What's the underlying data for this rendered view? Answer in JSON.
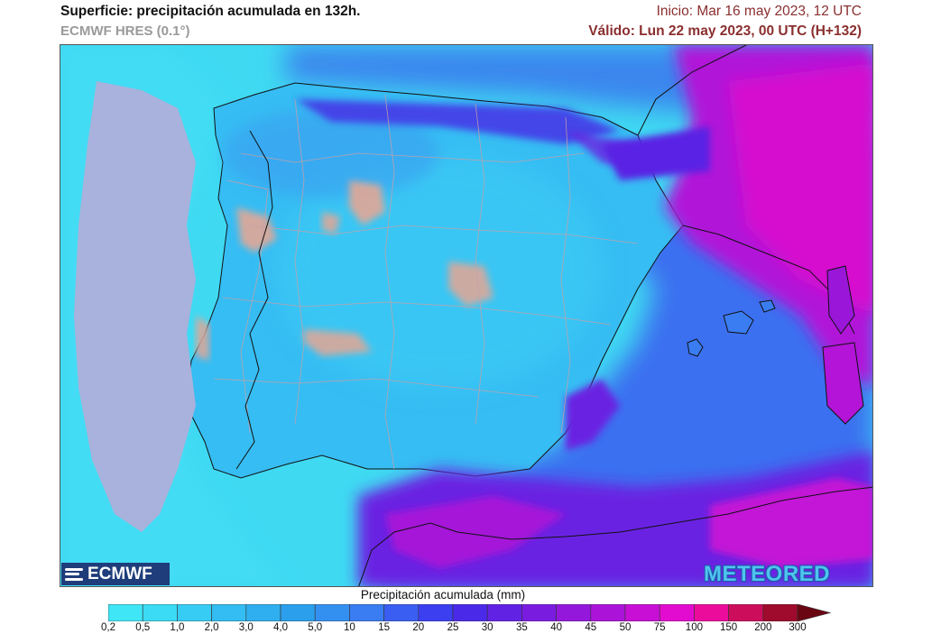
{
  "header": {
    "title": "Superficie: precipitación acumulada en 132h.",
    "model": "ECMWF HRES (0.1°)",
    "init": "Inicio: Mar 16 may 2023, 12 UTC",
    "valid": "Válido: Lun 22 may 2023, 00 UTC (H+132)"
  },
  "logos": {
    "left": "ECMWF",
    "right": "METEORED"
  },
  "legend": {
    "title": "Precipitación acumulada (mm)",
    "ticks": [
      "0,2",
      "0,5",
      "1,0",
      "2,0",
      "3,0",
      "4,0",
      "5,0",
      "10",
      "15",
      "20",
      "25",
      "30",
      "35",
      "40",
      "45",
      "50",
      "75",
      "100",
      "150",
      "200",
      "300"
    ],
    "colors": [
      "#3fe6f6",
      "#3bdaf5",
      "#37ccf4",
      "#33bdf2",
      "#2fafef",
      "#2b9fec",
      "#3490f0",
      "#3a7df2",
      "#3a5ef2",
      "#3c3ff0",
      "#4a2ae8",
      "#6222e4",
      "#7a1ce0",
      "#9418dc",
      "#ab14d8",
      "#c80fd6",
      "#e20cd0",
      "#ec0c9c",
      "#cc0d5c",
      "#9e0b2c",
      "#6a0612"
    ]
  },
  "colors": {
    "sea_atlantic": "#3fd9f2",
    "land_base": "#36b8f2",
    "dry_patches": "#d9a89a",
    "heavy": "#c814d6",
    "border": "#c8a0a8",
    "coast": "#111111"
  }
}
